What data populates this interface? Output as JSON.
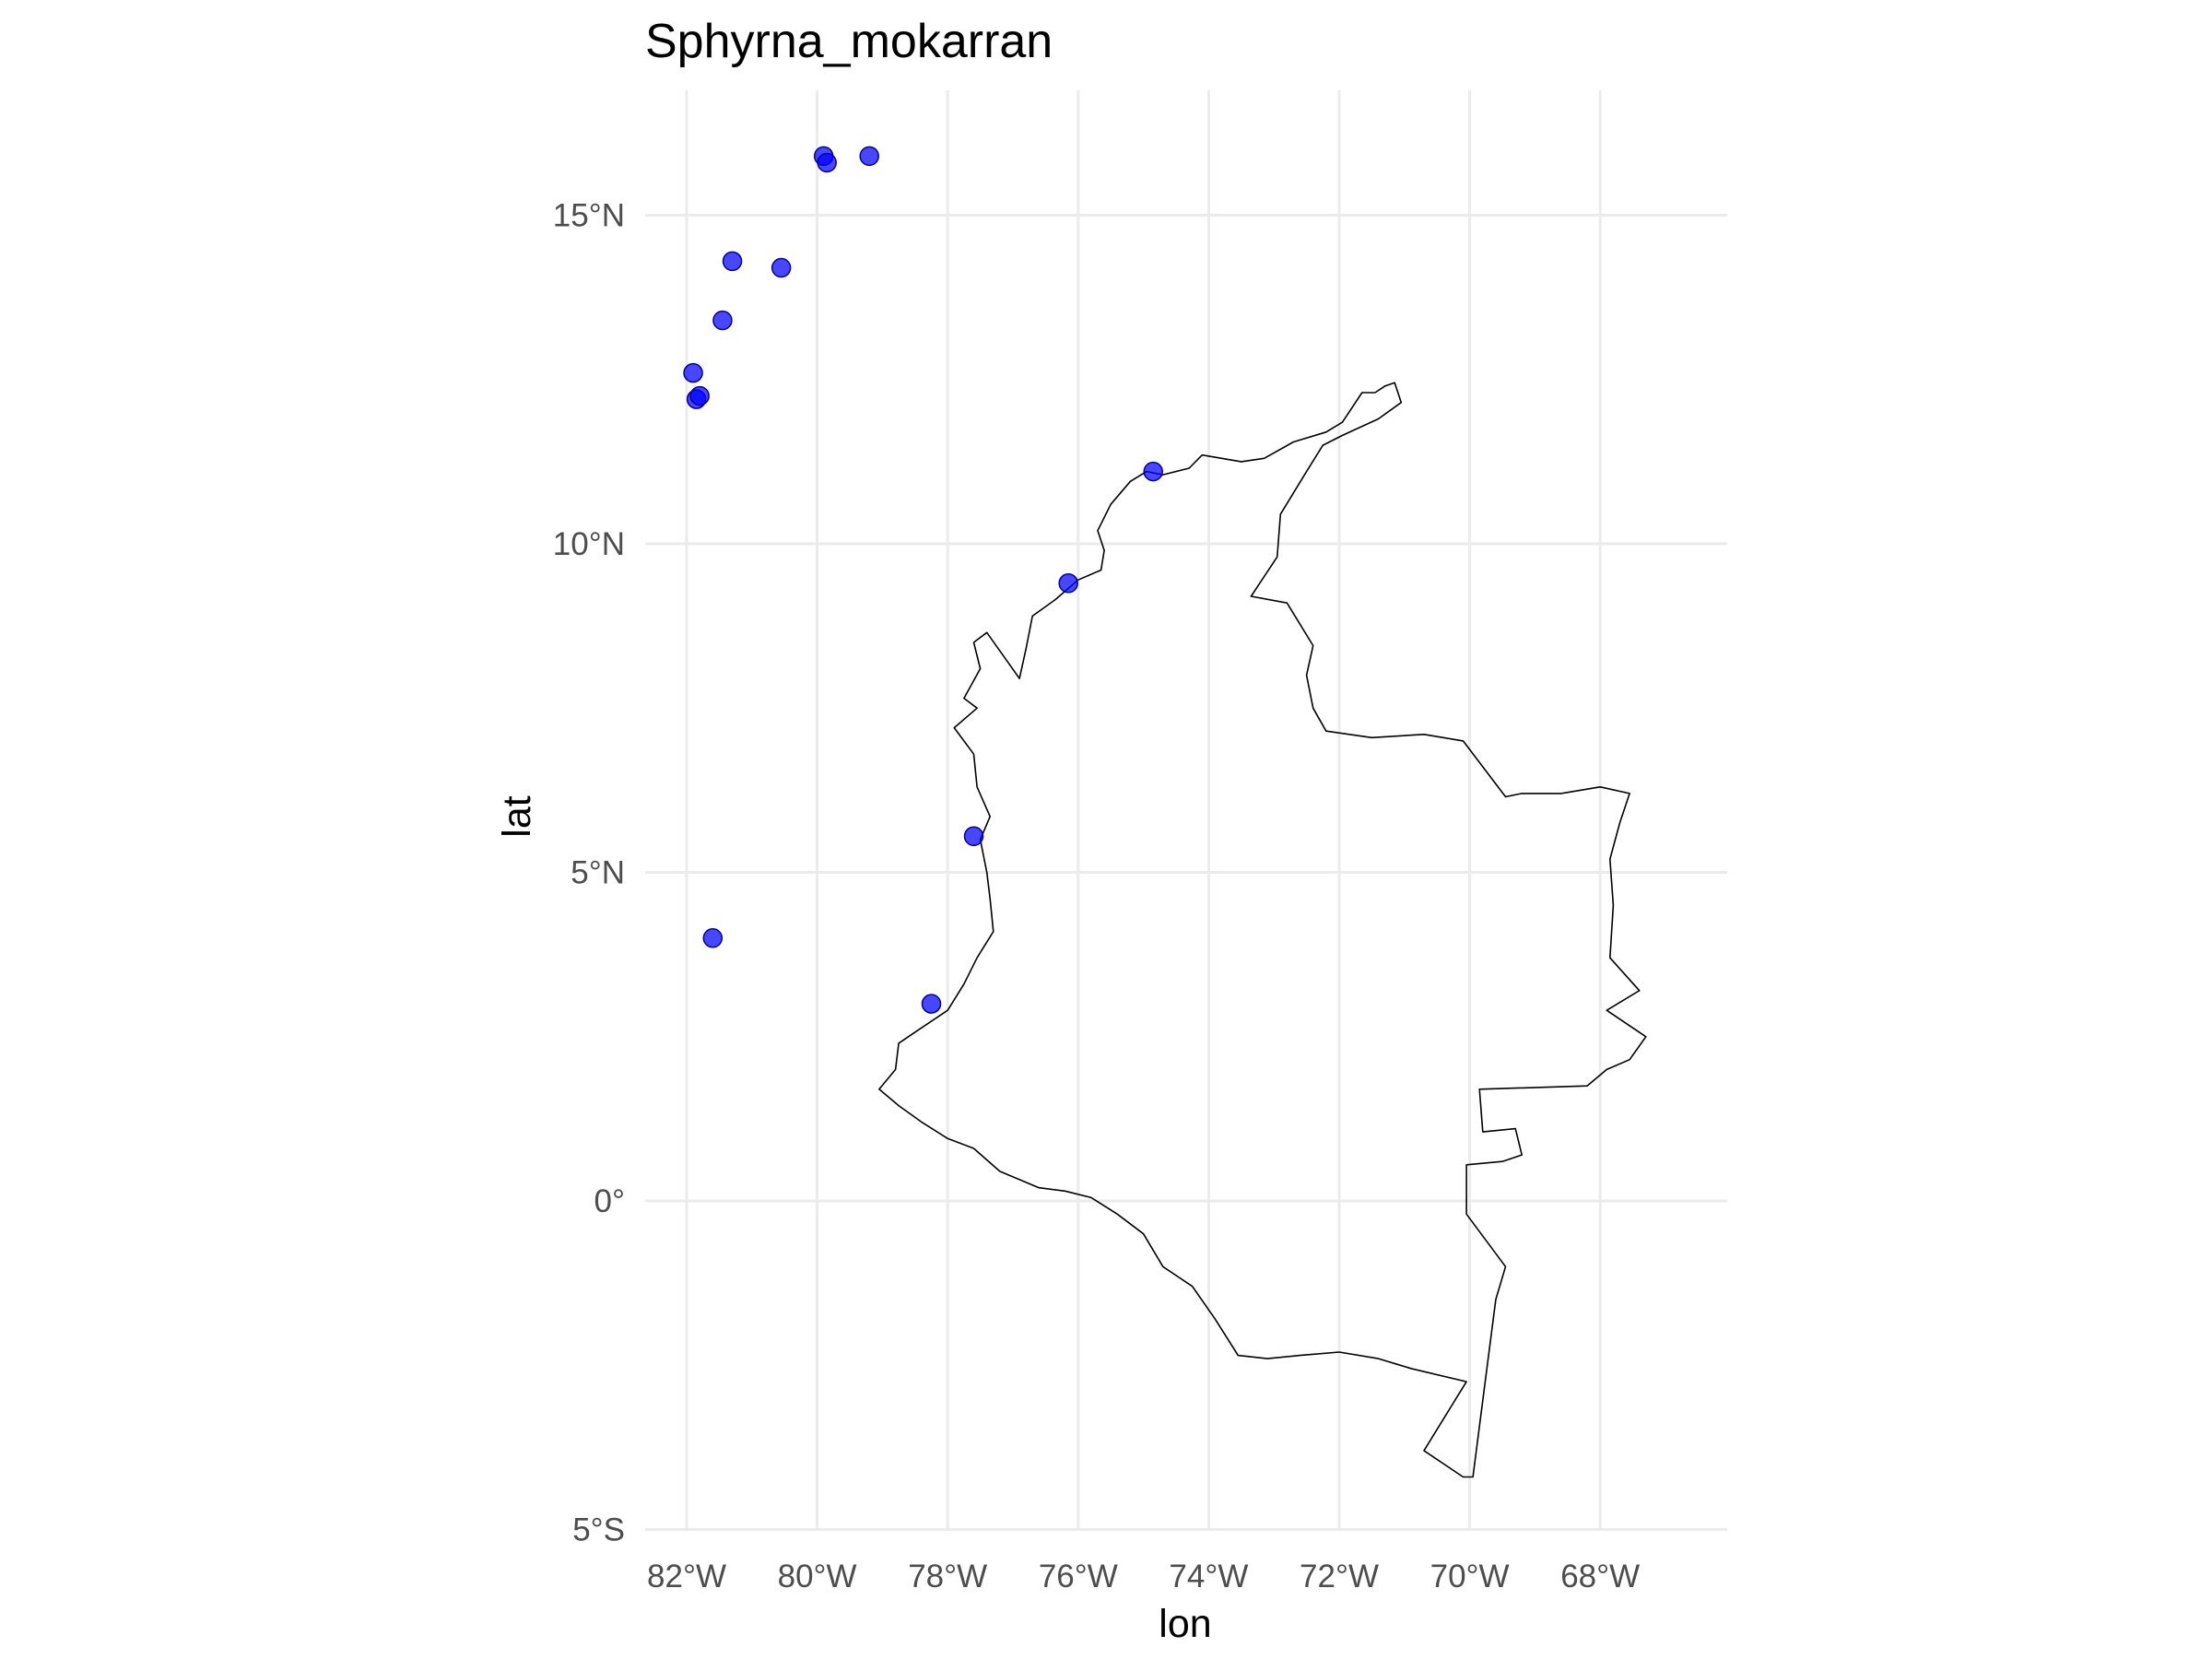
{
  "chart_data": {
    "type": "scatter",
    "title": "Sphyrna_mokarran",
    "xlabel": "lon",
    "ylabel": "lat",
    "xlim": [
      -82.6,
      -66.6
    ],
    "ylim": [
      -5.0,
      16.8
    ],
    "x_ticks": [
      {
        "value": -82,
        "label": "82°W"
      },
      {
        "value": -80,
        "label": "80°W"
      },
      {
        "value": -78,
        "label": "78°W"
      },
      {
        "value": -76,
        "label": "76°W"
      },
      {
        "value": -74,
        "label": "74°W"
      },
      {
        "value": -72,
        "label": "72°W"
      },
      {
        "value": -70,
        "label": "70°W"
      },
      {
        "value": -68,
        "label": "68°W"
      }
    ],
    "y_ticks": [
      {
        "value": 15,
        "label": "15°N"
      },
      {
        "value": 10,
        "label": "10°N"
      },
      {
        "value": 5,
        "label": "5°N"
      },
      {
        "value": 0,
        "label": "0°"
      },
      {
        "value": -5,
        "label": "5°S"
      }
    ],
    "grid": true,
    "point_color": "#0000ff",
    "outline_color": "#000000",
    "points": [
      {
        "lon": -79.9,
        "lat": 15.9
      },
      {
        "lon": -79.85,
        "lat": 15.8
      },
      {
        "lon": -79.2,
        "lat": 15.9
      },
      {
        "lon": -81.3,
        "lat": 14.3
      },
      {
        "lon": -80.55,
        "lat": 14.2
      },
      {
        "lon": -81.45,
        "lat": 13.4
      },
      {
        "lon": -81.9,
        "lat": 12.6
      },
      {
        "lon": -81.85,
        "lat": 12.2
      },
      {
        "lon": -81.8,
        "lat": 12.25
      },
      {
        "lon": -74.85,
        "lat": 11.1
      },
      {
        "lon": -76.15,
        "lat": 9.4
      },
      {
        "lon": -77.6,
        "lat": 5.55
      },
      {
        "lon": -81.6,
        "lat": 4.0
      },
      {
        "lon": -78.25,
        "lat": 3.0
      }
    ],
    "country_outline": [
      [
        -71.15,
        12.45
      ],
      [
        -71.3,
        12.4
      ],
      [
        -71.45,
        12.3
      ],
      [
        -71.65,
        12.3
      ],
      [
        -71.95,
        11.85
      ],
      [
        -72.2,
        11.7
      ],
      [
        -72.7,
        11.55
      ],
      [
        -73.15,
        11.3
      ],
      [
        -73.5,
        11.25
      ],
      [
        -74.1,
        11.35
      ],
      [
        -74.3,
        11.15
      ],
      [
        -74.7,
        11.05
      ],
      [
        -74.95,
        11.1
      ],
      [
        -75.2,
        10.95
      ],
      [
        -75.5,
        10.6
      ],
      [
        -75.7,
        10.2
      ],
      [
        -75.6,
        9.9
      ],
      [
        -75.65,
        9.6
      ],
      [
        -76.0,
        9.45
      ],
      [
        -76.35,
        9.15
      ],
      [
        -76.7,
        8.9
      ],
      [
        -76.8,
        8.4
      ],
      [
        -76.9,
        7.95
      ],
      [
        -77.15,
        8.3
      ],
      [
        -77.4,
        8.65
      ],
      [
        -77.6,
        8.5
      ],
      [
        -77.5,
        8.1
      ],
      [
        -77.75,
        7.65
      ],
      [
        -77.55,
        7.5
      ],
      [
        -77.9,
        7.2
      ],
      [
        -77.6,
        6.8
      ],
      [
        -77.55,
        6.3
      ],
      [
        -77.35,
        5.85
      ],
      [
        -77.5,
        5.5
      ],
      [
        -77.4,
        5.0
      ],
      [
        -77.35,
        4.6
      ],
      [
        -77.3,
        4.1
      ],
      [
        -77.55,
        3.7
      ],
      [
        -77.75,
        3.3
      ],
      [
        -78.0,
        2.9
      ],
      [
        -78.45,
        2.6
      ],
      [
        -78.75,
        2.4
      ],
      [
        -78.8,
        2.0
      ],
      [
        -79.05,
        1.7
      ],
      [
        -78.75,
        1.45
      ],
      [
        -78.4,
        1.2
      ],
      [
        -78.0,
        0.95
      ],
      [
        -77.6,
        0.8
      ],
      [
        -77.2,
        0.45
      ],
      [
        -76.6,
        0.2
      ],
      [
        -76.2,
        0.15
      ],
      [
        -75.8,
        0.05
      ],
      [
        -75.4,
        -0.2
      ],
      [
        -75.0,
        -0.5
      ],
      [
        -74.7,
        -1.0
      ],
      [
        -74.25,
        -1.3
      ],
      [
        -73.9,
        -1.8
      ],
      [
        -73.55,
        -2.35
      ],
      [
        -73.1,
        -2.4
      ],
      [
        -72.6,
        -2.35
      ],
      [
        -72.0,
        -2.3
      ],
      [
        -71.4,
        -2.4
      ],
      [
        -70.9,
        -2.55
      ],
      [
        -70.05,
        -2.75
      ],
      [
        -70.7,
        -3.8
      ],
      [
        -70.1,
        -4.2
      ],
      [
        -69.95,
        -4.2
      ],
      [
        -69.6,
        -1.5
      ],
      [
        -69.45,
        -1.0
      ],
      [
        -70.05,
        -0.2
      ],
      [
        -70.05,
        0.55
      ],
      [
        -69.5,
        0.6
      ],
      [
        -69.2,
        0.7
      ],
      [
        -69.3,
        1.1
      ],
      [
        -69.8,
        1.05
      ],
      [
        -69.85,
        1.7
      ],
      [
        -68.2,
        1.75
      ],
      [
        -67.9,
        2.0
      ],
      [
        -67.55,
        2.15
      ],
      [
        -67.3,
        2.5
      ],
      [
        -67.9,
        2.9
      ],
      [
        -67.4,
        3.2
      ],
      [
        -67.85,
        3.7
      ],
      [
        -67.8,
        4.5
      ],
      [
        -67.85,
        5.2
      ],
      [
        -67.7,
        5.75
      ],
      [
        -67.55,
        6.2
      ],
      [
        -68.0,
        6.3
      ],
      [
        -68.6,
        6.2
      ],
      [
        -69.2,
        6.2
      ],
      [
        -69.45,
        6.15
      ],
      [
        -70.1,
        7.0
      ],
      [
        -70.7,
        7.1
      ],
      [
        -71.5,
        7.05
      ],
      [
        -72.2,
        7.15
      ],
      [
        -72.4,
        7.5
      ],
      [
        -72.5,
        8.0
      ],
      [
        -72.4,
        8.45
      ],
      [
        -72.8,
        9.1
      ],
      [
        -73.35,
        9.2
      ],
      [
        -72.95,
        9.8
      ],
      [
        -72.9,
        10.45
      ],
      [
        -72.5,
        11.1
      ],
      [
        -72.25,
        11.5
      ],
      [
        -71.95,
        11.65
      ],
      [
        -71.4,
        11.9
      ],
      [
        -71.05,
        12.15
      ],
      [
        -71.15,
        12.45
      ]
    ]
  }
}
